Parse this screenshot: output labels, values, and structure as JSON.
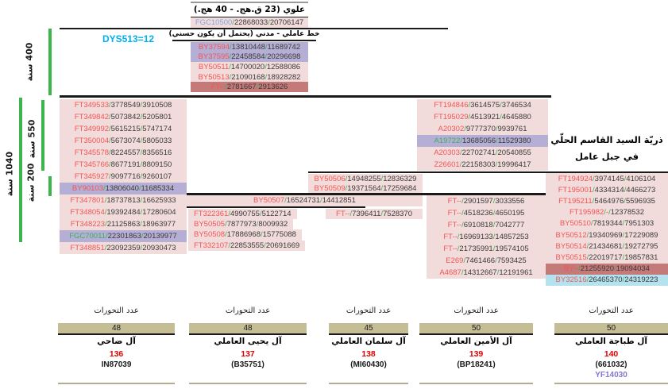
{
  "palette": {
    "pink": "#f2dcdb",
    "lavender": "#b5aed5",
    "salmon": "#c47a78",
    "cyan": "#b5e2ef",
    "red_name": "#f25555",
    "green_name": "#3fae5c",
    "blue_name": "#7fa7dc",
    "slash": "#3fae5c",
    "num": "#3a3a3a",
    "dys_blue": "#00b0f0",
    "bracket_green": "#3db54a",
    "tan_bar": "#c5bd96",
    "red_num": "#e00000",
    "kit_purple": "#8278cc"
  },
  "top": {
    "era_header": "علوي (23 ق.هج. - 40 هج.)",
    "founder_row": {
      "name": "FGC10500",
      "color": "blue",
      "n1": "22868033",
      "n2": "20706147",
      "bg": "pink"
    },
    "branch_header": "خط عاملي - مدني (يحتمل أن يكون حسني)",
    "dys_label": "DYS513=12",
    "rows": [
      {
        "name": "BY37594",
        "color": "red",
        "n1": "13810448",
        "n2": "11689742",
        "bg": "lavender"
      },
      {
        "name": "BY37595",
        "color": "red",
        "n1": "22458584",
        "n2": "20296698",
        "bg": "lavender"
      },
      {
        "name": "BY50511",
        "color": "red",
        "n1": "14700020",
        "n2": "12588086",
        "bg": "pink"
      },
      {
        "name": "BY50513",
        "color": "red",
        "n1": "21090168",
        "n2": "18928282",
        "bg": "pink"
      },
      {
        "name": "FT--",
        "color": "red",
        "n1": "2781667",
        "n2": "2913626",
        "bg": "salmon"
      }
    ]
  },
  "brackets": [
    {
      "label": "400 سنة"
    },
    {
      "label": "550 سنة"
    },
    {
      "label": "1040 سنة"
    },
    {
      "label": "200 سنة"
    }
  ],
  "columns": {
    "left": [
      {
        "name": "FT349533",
        "color": "red",
        "n1": "3778549",
        "n2": "3910508",
        "bg": "pink"
      },
      {
        "name": "FT349842",
        "color": "red",
        "n1": "5073842",
        "n2": "5205801",
        "bg": "pink"
      },
      {
        "name": "FT349992",
        "color": "red",
        "n1": "5615215",
        "n2": "5747174",
        "bg": "pink"
      },
      {
        "name": "FT350004",
        "color": "red",
        "n1": "5673074",
        "n2": "5805033",
        "bg": "pink"
      },
      {
        "name": "FT345578",
        "color": "red",
        "n1": "8224557",
        "n2": "8356516",
        "bg": "pink"
      },
      {
        "name": "FT345766",
        "color": "red",
        "n1": "8677191",
        "n2": "8809150",
        "bg": "pink"
      },
      {
        "name": "FT345927",
        "color": "red",
        "n1": "9097716",
        "n2": "9260107",
        "bg": "pink"
      },
      {
        "name": "BY90103",
        "color": "red",
        "n1": "13806040",
        "n2": "11685334",
        "bg": "lavender"
      },
      {
        "name": "FT347801",
        "color": "red",
        "n1": "18737813",
        "n2": "16625933",
        "bg": "pink"
      },
      {
        "name": "FT348054",
        "color": "red",
        "n1": "19392484",
        "n2": "17280604",
        "bg": "pink"
      },
      {
        "name": "FT348223",
        "color": "red",
        "n1": "21125863",
        "n2": "18963977",
        "bg": "pink"
      },
      {
        "name": "FGC70011",
        "color": "green",
        "n1": "22301863",
        "n2": "20139977",
        "bg": "lavender"
      },
      {
        "name": "FT348851",
        "color": "red",
        "n1": "23092359",
        "n2": "20930473",
        "bg": "pink"
      }
    ],
    "upper_right": [
      {
        "name": "FT194846",
        "color": "red",
        "n1": "3614575",
        "n2": "3746534",
        "bg": "pink"
      },
      {
        "name": "FT195029",
        "color": "red",
        "n1": "4513921",
        "n2": "4645880",
        "bg": "pink"
      },
      {
        "name": "A20302",
        "color": "red",
        "n1": "9777370",
        "n2": "9939761",
        "bg": "pink"
      },
      {
        "name": "A19722",
        "color": "green",
        "n1": "13685056",
        "n2": "11529380",
        "bg": "lavender"
      },
      {
        "name": "A20303",
        "color": "red",
        "n1": "22702741",
        "n2": "20540855",
        "bg": "pink"
      },
      {
        "name": "Z26601",
        "color": "red",
        "n1": "22158303",
        "n2": "19996417",
        "bg": "pink"
      }
    ],
    "mid": [
      {
        "name": "BY50506",
        "color": "red",
        "n1": "14948255",
        "n2": "12836329",
        "bg": "pink"
      },
      {
        "name": "BY50509",
        "color": "red",
        "n1": "19371564",
        "n2": "17259684",
        "bg": "pink"
      }
    ],
    "mid_banner": {
      "name": "BY50507",
      "color": "red",
      "n1": "16524731",
      "n2": "14412851",
      "bg": "pink"
    },
    "sub_left": [
      {
        "name": "FT322361",
        "color": "red",
        "n1": "4990755",
        "n2": "5122714",
        "bg": "pink"
      },
      {
        "name": "BY50505",
        "color": "red",
        "n1": "7877973",
        "n2": "8009932",
        "bg": "pink"
      },
      {
        "name": "BY50508",
        "color": "red",
        "n1": "17886968",
        "n2": "15775088",
        "bg": "pink"
      },
      {
        "name": "FT332107",
        "color": "red",
        "n1": "22853555",
        "n2": "20691669",
        "bg": "pink"
      }
    ],
    "sub_leaf": {
      "name": "FT--",
      "color": "red",
      "n1": "7396411",
      "n2": "7528370",
      "bg": "pink"
    },
    "lower_right": [
      {
        "name": "FT--",
        "color": "red",
        "n1": "2901597",
        "n2": "3033556",
        "bg": "pink"
      },
      {
        "name": "FT--",
        "color": "red",
        "n1": "4518236",
        "n2": "4650195",
        "bg": "pink"
      },
      {
        "name": "FT--",
        "color": "red",
        "n1": "6910818",
        "n2": "7042777",
        "bg": "pink"
      },
      {
        "name": "FT--",
        "color": "red",
        "n1": "16969133",
        "n2": "14857253",
        "bg": "pink"
      },
      {
        "name": "FT--",
        "color": "red",
        "n1": "21735991",
        "n2": "19574105",
        "bg": "pink"
      },
      {
        "name": "E269",
        "color": "red",
        "n1": "7461466",
        "n2": "7593425",
        "bg": "pink"
      },
      {
        "name": "A4687",
        "color": "red",
        "n1": "14312667",
        "n2": "12191961",
        "bg": "pink"
      }
    ],
    "right": [
      {
        "name": "FT194924",
        "color": "red",
        "n1": "3974145",
        "n2": "4106104",
        "bg": "pink"
      },
      {
        "name": "FT195001",
        "color": "red",
        "n1": "4334314",
        "n2": "4466273",
        "bg": "pink"
      },
      {
        "name": "FT195211",
        "color": "red",
        "n1": "5464976",
        "n2": "5596935",
        "bg": "pink"
      },
      {
        "name": "FT195982",
        "color": "red",
        "n1": "-",
        "n2": "12378532",
        "bg": "pink"
      },
      {
        "name": "BY50510",
        "color": "red",
        "n1": "7819344",
        "n2": "7951303",
        "bg": "pink"
      },
      {
        "name": "BY50512",
        "color": "red",
        "n1": "19340969",
        "n2": "17229089",
        "bg": "pink"
      },
      {
        "name": "BY50514",
        "color": "red",
        "n1": "21434681",
        "n2": "19272795",
        "bg": "pink"
      },
      {
        "name": "BY50515",
        "color": "red",
        "n1": "22019717",
        "n2": "19857831",
        "bg": "pink"
      },
      {
        "name": "BY--",
        "color": "red",
        "n1": "21255920",
        "n2": "19094034",
        "bg": "salmon"
      },
      {
        "name": "BY32516",
        "color": "red",
        "n1": "26465370",
        "n2": "24319223",
        "bg": "cyan"
      }
    ]
  },
  "right_header": {
    "line1": "ذريّة السيد القاسم الحلّي",
    "line2": "في جبل عامل"
  },
  "mutation_groups": [
    {
      "header": "عدد التحورات",
      "count": "48",
      "family": "آل ضاحي",
      "mutations": "136",
      "kit": "IN87039",
      "extra_kit": ""
    },
    {
      "header": "عدد التحورات",
      "count": "48",
      "family": "آل يحيى العاملي",
      "mutations": "137",
      "kit": "(B35751)",
      "extra_kit": ""
    },
    {
      "header": "عدد التحورات",
      "count": "45",
      "family": "آل سلمان العاملي",
      "mutations": "138",
      "kit": "(MI60430)",
      "extra_kit": ""
    },
    {
      "header": "عدد التحورات",
      "count": "50",
      "family": "آل الأمين العاملي",
      "mutations": "139",
      "kit": "(BP18241)",
      "extra_kit": ""
    },
    {
      "header": "عدد التحورات",
      "count": "50",
      "family": "آل طباجة العاملي",
      "mutations": "140",
      "kit": "(661032)",
      "extra_kit": "YF14030"
    }
  ]
}
